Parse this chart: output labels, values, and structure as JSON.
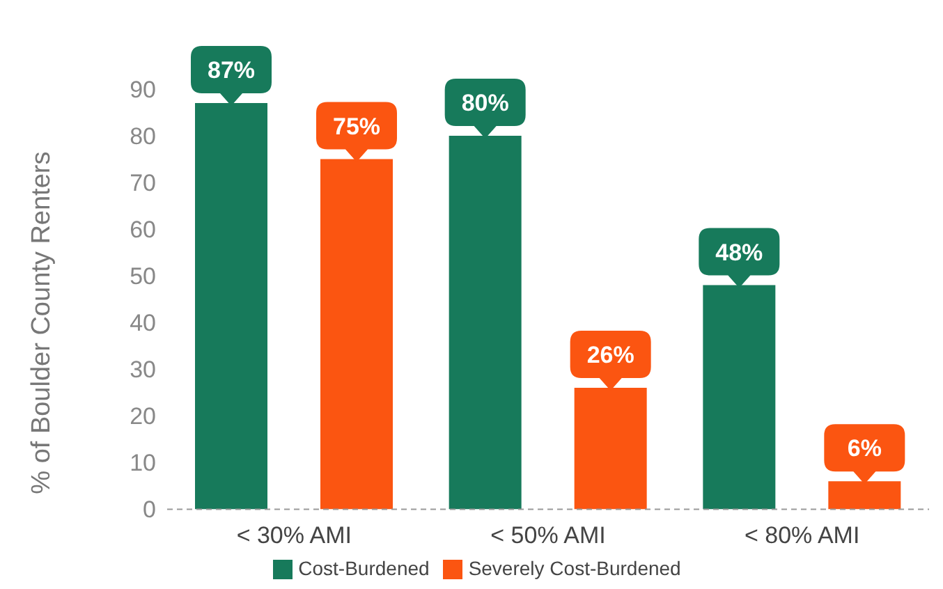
{
  "chart_data": {
    "type": "bar",
    "ylabel": "% of Boulder County Renters",
    "categories": [
      "< 30% AMI",
      "< 50% AMI",
      "< 80% AMI"
    ],
    "series": [
      {
        "name": "Cost-Burdened",
        "color": "#177a5b",
        "values": [
          87,
          80,
          48
        ],
        "value_labels": [
          "87%",
          "80%",
          "48%"
        ]
      },
      {
        "name": "Severely Cost-Burdened",
        "color": "#fb5511",
        "values": [
          75,
          26,
          6
        ],
        "value_labels": [
          "75%",
          "26%",
          "6%"
        ]
      }
    ],
    "ylim": [
      0,
      90
    ],
    "yticks": [
      0,
      10,
      20,
      30,
      40,
      50,
      60,
      70,
      80,
      90
    ],
    "grid": false,
    "legend": "bottom"
  }
}
